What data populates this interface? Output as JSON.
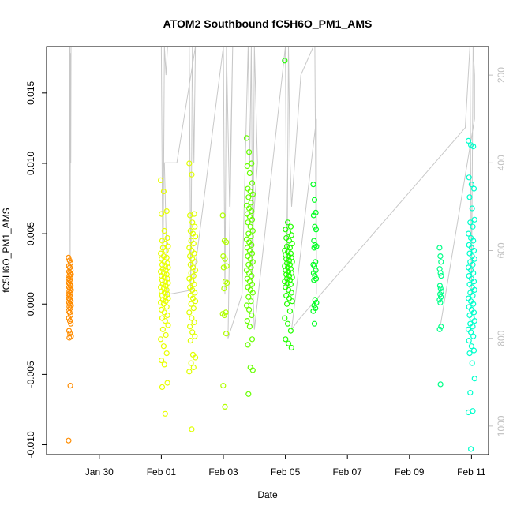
{
  "chart_data": {
    "type": "scatter",
    "title": "ATOM2 Southbound fC5H6O_PM1_AMS",
    "xlabel": "Date",
    "ylabel": "fC5H6O_PM1_AMS",
    "x_ticks": [
      "Jan 30",
      "Feb 01",
      "Feb 03",
      "Feb 05",
      "Feb 07",
      "Feb 09",
      "Feb 11"
    ],
    "x_tick_values": [
      30,
      32,
      34,
      36,
      38,
      40,
      42
    ],
    "xlim": [
      28.3,
      42.55
    ],
    "ylim": [
      -0.0107,
      0.0183
    ],
    "y_ticks": [
      -0.01,
      -0.005,
      0.0,
      0.005,
      0.01,
      0.015
    ],
    "y_tick_labels": [
      "-0.010",
      "-0.005",
      "0.000",
      "0.005",
      "0.010",
      "0.015"
    ],
    "right_axis": {
      "ticks": [
        200,
        400,
        600,
        800,
        1000
      ],
      "ylim_reversed": [
        1065,
        135
      ],
      "color": "#c0c0c0"
    },
    "grid": false,
    "legend": "none",
    "clusters": [
      {
        "x": 29.05,
        "spread": 0.04,
        "color": "#ff8c00",
        "values": [
          0.0033,
          0.0031,
          0.0029,
          0.0027,
          0.0026,
          0.0024,
          0.0023,
          0.0022,
          0.0021,
          0.002,
          0.0019,
          0.0018,
          0.0017,
          0.0016,
          0.0015,
          0.0014,
          0.0013,
          0.0012,
          0.0011,
          0.001,
          0.0009,
          0.0008,
          0.0007,
          0.0006,
          0.0005,
          0.0004,
          0.0003,
          0.0002,
          0.0001,
          0.0,
          -0.0001,
          -0.0002,
          -0.0003,
          -0.0005,
          -0.0006,
          -0.0008,
          -0.001,
          -0.0012,
          -0.0014,
          -0.0019,
          -0.0021,
          -0.0023,
          -0.0024,
          -0.0058,
          -0.0097
        ]
      },
      {
        "x": 32.1,
        "spread": 0.12,
        "color": "#e8ff00",
        "values": [
          0.0088,
          0.008,
          0.0066,
          0.0064,
          0.0052,
          0.0047,
          0.0045,
          0.0043,
          0.0041,
          0.004,
          0.0038,
          0.0036,
          0.0034,
          0.0033,
          0.0032,
          0.003,
          0.0029,
          0.0028,
          0.0027,
          0.0026,
          0.0025,
          0.0024,
          0.0023,
          0.0022,
          0.0021,
          0.002,
          0.0019,
          0.0018,
          0.0017,
          0.0016,
          0.0015,
          0.0014,
          0.0013,
          0.0012,
          0.0011,
          0.001,
          0.0009,
          0.0008,
          0.0007,
          0.0006,
          0.0005,
          0.0004,
          0.0003,
          0.0002,
          0.0001,
          0.0,
          -0.0002,
          -0.0004,
          -0.0006,
          -0.0008,
          -0.001,
          -0.0012,
          -0.0015,
          -0.0018,
          -0.0022,
          -0.0025,
          -0.003,
          -0.0035,
          -0.004,
          -0.0043,
          -0.0056,
          -0.0059,
          -0.0078
        ]
      },
      {
        "x": 33.0,
        "spread": 0.1,
        "color": "#e0ff00",
        "values": [
          0.01,
          0.0092,
          0.0064,
          0.0063,
          0.0058,
          0.0055,
          0.0052,
          0.005,
          0.0048,
          0.0045,
          0.0043,
          0.004,
          0.0038,
          0.0036,
          0.0034,
          0.0032,
          0.003,
          0.0028,
          0.0026,
          0.0024,
          0.0022,
          0.002,
          0.0018,
          0.0016,
          0.0014,
          0.0012,
          0.001,
          0.0008,
          0.0006,
          0.0004,
          0.0002,
          0.0,
          -0.0003,
          -0.0006,
          -0.001,
          -0.0013,
          -0.0016,
          -0.002,
          -0.0023,
          -0.0026,
          -0.0036,
          -0.0038,
          -0.0042,
          -0.0045,
          -0.0048,
          -0.0089
        ]
      },
      {
        "x": 34.05,
        "spread": 0.07,
        "color": "#b0ff00",
        "values": [
          0.0063,
          0.0045,
          0.0044,
          0.0034,
          0.0032,
          0.0027,
          0.0026,
          0.0016,
          0.0015,
          0.0011,
          -0.0006,
          -0.0007,
          -0.0008,
          -0.0021,
          -0.0058,
          -0.0073
        ]
      },
      {
        "x": 34.85,
        "spread": 0.1,
        "color": "#66ff00",
        "values": [
          0.0118,
          0.0108,
          0.01,
          0.0098,
          0.0093,
          0.0086,
          0.0082,
          0.008,
          0.0078,
          0.0076,
          0.0072,
          0.007,
          0.0068,
          0.0066,
          0.0064,
          0.0062,
          0.006,
          0.0058,
          0.0055,
          0.0052,
          0.005,
          0.0048,
          0.0046,
          0.0044,
          0.0042,
          0.004,
          0.0038,
          0.0036,
          0.0034,
          0.0032,
          0.003,
          0.0028,
          0.0026,
          0.0024,
          0.0022,
          0.002,
          0.0018,
          0.0016,
          0.0014,
          0.0012,
          0.001,
          0.0008,
          0.0005,
          0.0002,
          -0.0001,
          -0.0004,
          -0.0008,
          -0.0012,
          -0.0016,
          -0.0025,
          -0.0029,
          -0.0045,
          -0.0047,
          -0.0064
        ]
      },
      {
        "x": 36.1,
        "spread": 0.12,
        "color": "#22ff00",
        "values": [
          0.0173,
          0.0058,
          0.0055,
          0.0053,
          0.0051,
          0.0049,
          0.0047,
          0.0045,
          0.0043,
          0.0041,
          0.004,
          0.0038,
          0.0037,
          0.0036,
          0.0035,
          0.0034,
          0.0033,
          0.0032,
          0.0031,
          0.003,
          0.0029,
          0.0028,
          0.0027,
          0.0026,
          0.0025,
          0.0024,
          0.0023,
          0.0022,
          0.0021,
          0.002,
          0.0019,
          0.0018,
          0.0017,
          0.0016,
          0.0015,
          0.0014,
          0.0012,
          0.001,
          0.0008,
          0.0006,
          0.0004,
          0.0002,
          0.0,
          -0.0005,
          -0.001,
          -0.0014,
          -0.0019,
          -0.0025,
          -0.0028,
          -0.0031
        ]
      },
      {
        "x": 36.95,
        "spread": 0.05,
        "color": "#00ff22",
        "values": [
          0.0085,
          0.0074,
          0.0065,
          0.0063,
          0.0055,
          0.0053,
          0.0045,
          0.0042,
          0.0041,
          0.004,
          0.003,
          0.0028,
          0.0027,
          0.0024,
          0.0022,
          0.002,
          0.0018,
          0.0017,
          0.0003,
          0.0001,
          -0.0001,
          -0.0003,
          -0.0005,
          -0.0014
        ]
      },
      {
        "x": 41.0,
        "spread": 0.03,
        "color": "#00ff88",
        "values": [
          0.004,
          0.0034,
          0.003,
          0.0025,
          0.0022,
          0.002,
          0.0013,
          0.0011,
          0.0009,
          0.0007,
          0.0005,
          0.0003,
          0.0001,
          -0.0016,
          -0.0018,
          -0.0057
        ]
      },
      {
        "x": 42.0,
        "spread": 0.1,
        "color": "#00ffcc",
        "values": [
          0.0116,
          0.0113,
          0.0112,
          0.009,
          0.0085,
          0.0082,
          0.0076,
          0.0068,
          0.006,
          0.0058,
          0.0055,
          0.005,
          0.0047,
          0.0045,
          0.0042,
          0.004,
          0.0038,
          0.0036,
          0.0034,
          0.0032,
          0.003,
          0.0028,
          0.0026,
          0.0024,
          0.0022,
          0.002,
          0.0018,
          0.0016,
          0.0014,
          0.0012,
          0.001,
          0.0008,
          0.0006,
          0.0004,
          0.0002,
          0.0,
          -0.0002,
          -0.0004,
          -0.0006,
          -0.0008,
          -0.001,
          -0.0012,
          -0.0014,
          -0.0016,
          -0.0018,
          -0.002,
          -0.0023,
          -0.0026,
          -0.003,
          -0.0033,
          -0.0035,
          -0.0042,
          -0.0053,
          -0.0063,
          -0.0076,
          -0.0077,
          -0.0103
        ]
      }
    ],
    "altitude_series": {
      "color": "#c8c8c8",
      "x": [
        29.05,
        29.05,
        29.06,
        29.07,
        29.08,
        29.09,
        30.3,
        31.9,
        32.0,
        32.05,
        32.1,
        32.15,
        32.2,
        32.3,
        32.9,
        32.95,
        33.0,
        33.05,
        33.1,
        32.5,
        32.1,
        32.2,
        33.0,
        34.0,
        34.05,
        34.1,
        34.2,
        34.3,
        34.15,
        34.6,
        34.8,
        34.85,
        34.9,
        34.95,
        35.0,
        35.1,
        34.9,
        35.0,
        36.0,
        36.05,
        36.1,
        36.15,
        36.2,
        36.5,
        36.9,
        36.95,
        37.0,
        37.0,
        36.2,
        36.4,
        41.8,
        41.95,
        42.0,
        42.05,
        42.1,
        42.1,
        41.0
      ],
      "y": [
        135,
        350,
        650,
        150,
        400,
        135,
        135,
        135,
        135,
        700,
        135,
        200,
        135,
        135,
        135,
        700,
        135,
        400,
        135,
        400,
        400,
        700,
        690,
        135,
        700,
        135,
        500,
        135,
        800,
        700,
        135,
        400,
        135,
        700,
        135,
        400,
        600,
        780,
        135,
        700,
        135,
        400,
        500,
        200,
        135,
        135,
        700,
        300,
        780,
        760,
        320,
        135,
        700,
        135,
        200,
        300,
        770
      ]
    }
  }
}
